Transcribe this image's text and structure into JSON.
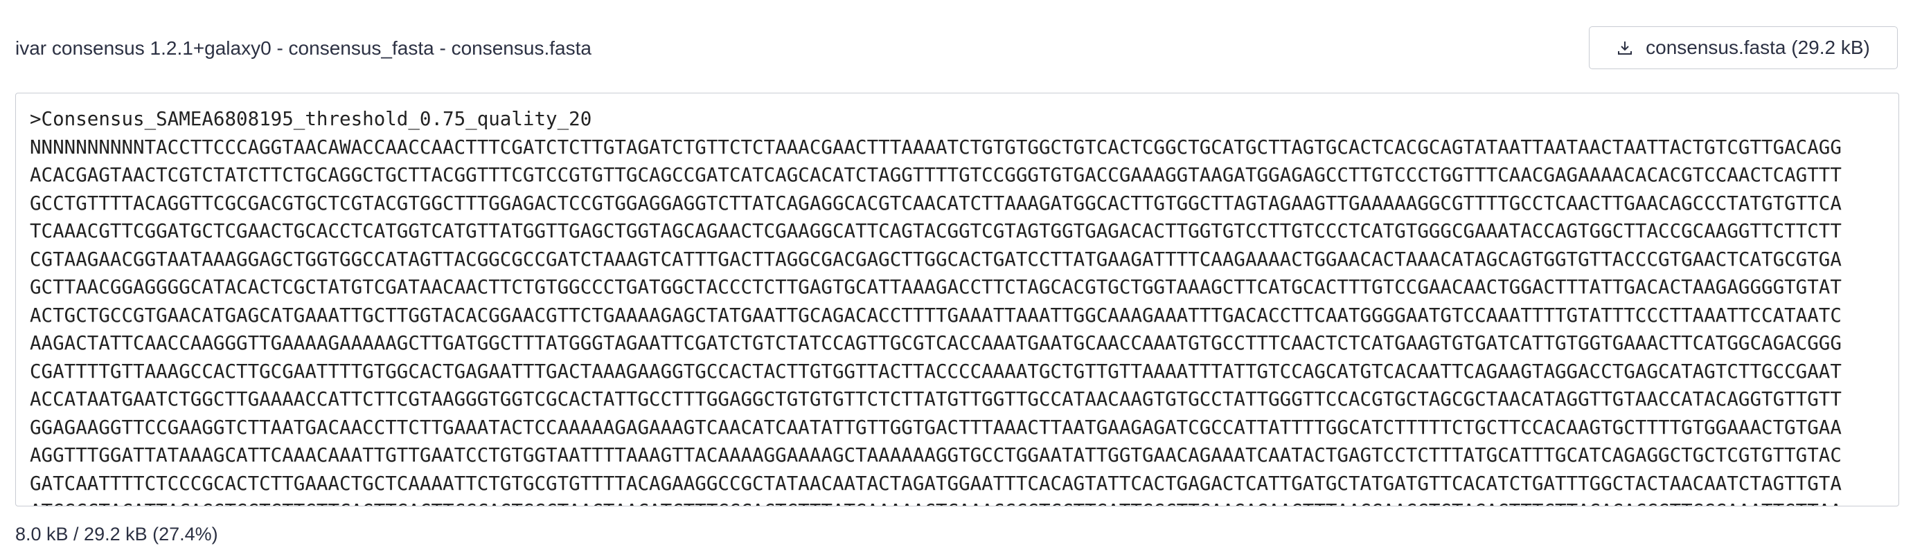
{
  "header": {
    "title": "ivar consensus 1.2.1+galaxy0 - consensus_fasta - consensus.fasta",
    "download_label": "consensus.fasta (29.2 kB)"
  },
  "content": {
    "lines": [
      ">Consensus_SAMEA6808195_threshold_0.75_quality_20",
      "NNNNNNNNNNTACCTTCCCAGGTAACAWACCAACCAACTTTCGATCTCTTGTAGATCTGTTCTCTAAACGAACTTTAAAATCTGTGTGGCTGTCACTCGGCTGCATGCTTAGTGCACTCACGCAGTATAATTAATAACTAATTACTGTCGTTGACAGG",
      "ACACGAGTAACTCGTCTATCTTCTGCAGGCTGCTTACGGTTTCGTCCGTGTTGCAGCCGATCATCAGCACATCTAGGTTTTGTCCGGGTGTGACCGAAAGGTAAGATGGAGAGCCTTGTCCCTGGTTTCAACGAGAAAACACACGTCCAACTCAGTTT",
      "GCCTGTTTTACAGGTTCGCGACGTGCTCGTACGTGGCTTTGGAGACTCCGTGGAGGAGGTCTTATCAGAGGCACGTCAACATCTTAAAGATGGCACTTGTGGCTTAGTAGAAGTTGAAAAAGGCGTTTTGCCTCAACTTGAACAGCCCTATGTGTTCA",
      "TCAAACGTTCGGATGCTCGAACTGCACCTCATGGTCATGTTATGGTTGAGCTGGTAGCAGAACTCGAAGGCATTCAGTACGGTCGTAGTGGTGAGACACTTGGTGTCCTTGTCCCTCATGTGGGCGAAATACCAGTGGCTTACCGCAAGGTTCTTCTT",
      "CGTAAGAACGGTAATAAAGGAGCTGGTGGCCATAGTTACGGCGCCGATCTAAAGTCATTTGACTTAGGCGACGAGCTTGGCACTGATCCTTATGAAGATTTTCAAGAAAACTGGAACACTAAACATAGCAGTGGTGTTACCCGTGAACTCATGCGTGA",
      "GCTTAACGGAGGGGCATACACTCGCTATGTCGATAACAACTTCTGTGGCCCTGATGGCTACCCTCTTGAGTGCATTAAAGACCTTCTAGCACGTGCTGGTAAAGCTTCATGCACTTTGTCCGAACAACTGGACTTTATTGACACTAAGAGGGGTGTAT",
      "ACTGCTGCCGTGAACATGAGCATGAAATTGCTTGGTACACGGAACGTTCTGAAAAGAGCTATGAATTGCAGACACCTTTTGAAATTAAATTGGCAAAGAAATTTGACACCTTCAATGGGGAATGTCCAAATTTTGTATTTCCCTTAAATTCCATAATC",
      "AAGACTATTCAACCAAGGGTTGAAAAGAAAAAGCTTGATGGCTTTATGGGTAGAATTCGATCTGTCTATCCAGTTGCGTCACCAAATGAATGCAACCAAATGTGCCTTTCAACTCTCATGAAGTGTGATCATTGTGGTGAAACTTCATGGCAGACGGG",
      "CGATTTTGTTAAAGCCACTTGCGAATTTTGTGGCACTGAGAATTTGACTAAAGAAGGTGCCACTACTTGTGGTTACTTACCCCAAAATGCTGTTGTTAAAATTTATTGTCCAGCATGTCACAATTCAGAAGTAGGACCTGAGCATAGTCTTGCCGAAT",
      "ACCATAATGAATCTGGCTTGAAAACCATTCTTCGTAAGGGTGGTCGCACTATTGCCTTTGGAGGCTGTGTGTTCTCTTATGTTGGTTGCCATAACAAGTGTGCCTATTGGGTTCCACGTGCTAGCGCTAACATAGGTTGTAACCATACAGGTGTTGTT",
      "GGAGAAGGTTCCGAAGGTCTTAATGACAACCTTCTTGAAATACTCCAAAAAGAGAAAGTCAACATCAATATTGTTGGTGACTTTAAACTTAATGAAGAGATCGCCATTATTTTGGCATCTTTTTCTGCTTCCACAAGTGCTTTTGTGGAAACTGTGAA",
      "AGGTTTGGATTATAAAGCATTCAAACAAATTGTTGAATCCTGTGGTAATTTTAAAGTTACAAAAGGAAAAGCTAAAAAAGGTGCCTGGAATATTGGTGAACAGAAATCAATACTGAGTCCTCTTTATGCATTTGCATCAGAGGCTGCTCGTGTTGTAC",
      "GATCAATTTTCTCCCGCACTCTTGAAACTGCTCAAAATTCTGTGCGTGTTTTACAGAAGGCCGCTATAACAATACTAGATGGAATTTCACAGTATTCACTGAGACTCATTGATGCTATGATGTTCACATCTGATTTGGCTACTAACAATCTAGTTGTA",
      "ATGGCCTACATTACAGGTGGTGTTGTTCAGTTGACTTCGCAGTGGCTAACTAACATCTTTGGCACTGTTTATGAAAAACTCAAACCCGTCCTTGATTGGCTTGAAGAGAAGTTTAAGGAAGGTGTAGAGTTTCTTAGAGACGGTTGGGAAATTGTTAA"
    ]
  },
  "footer": {
    "progress": "8.0 kB / 29.2 kB (27.4%)"
  }
}
